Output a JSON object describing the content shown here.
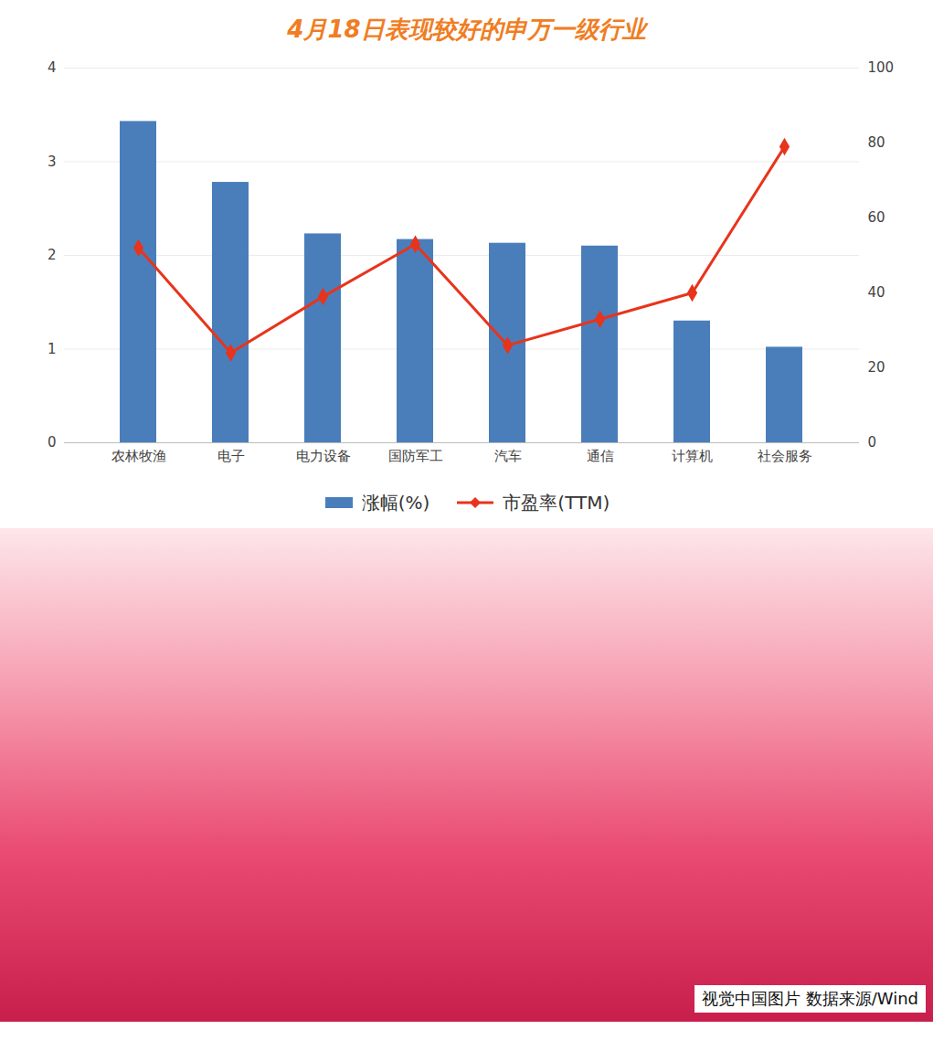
{
  "chart_data": {
    "type": "bar",
    "title": "4月18日表现较好的申万一级行业",
    "categories": [
      "农林牧渔",
      "电子",
      "电力设备",
      "国防军工",
      "汽车",
      "通信",
      "计算机",
      "社会服务"
    ],
    "series": [
      {
        "name": "涨幅(%)",
        "type": "bar",
        "color": "#4a7ebb",
        "values": [
          3.43,
          2.78,
          2.23,
          2.17,
          2.13,
          2.1,
          1.3,
          1.02
        ]
      },
      {
        "name": "市盈率(TTM)",
        "type": "line",
        "axis": "y2",
        "color": "#e8341c",
        "marker": "diamond",
        "values": [
          52,
          24,
          39,
          53,
          26,
          33,
          40,
          79
        ]
      }
    ],
    "ylim": [
      0,
      4
    ],
    "yticks": [
      0,
      1,
      2,
      3,
      4
    ],
    "y2lim": [
      0,
      100
    ],
    "y2ticks": [
      0,
      20,
      40,
      60,
      80,
      100
    ],
    "grid": true,
    "legend": "bottom",
    "caption": "视觉中国图片 数据来源/Wind"
  }
}
